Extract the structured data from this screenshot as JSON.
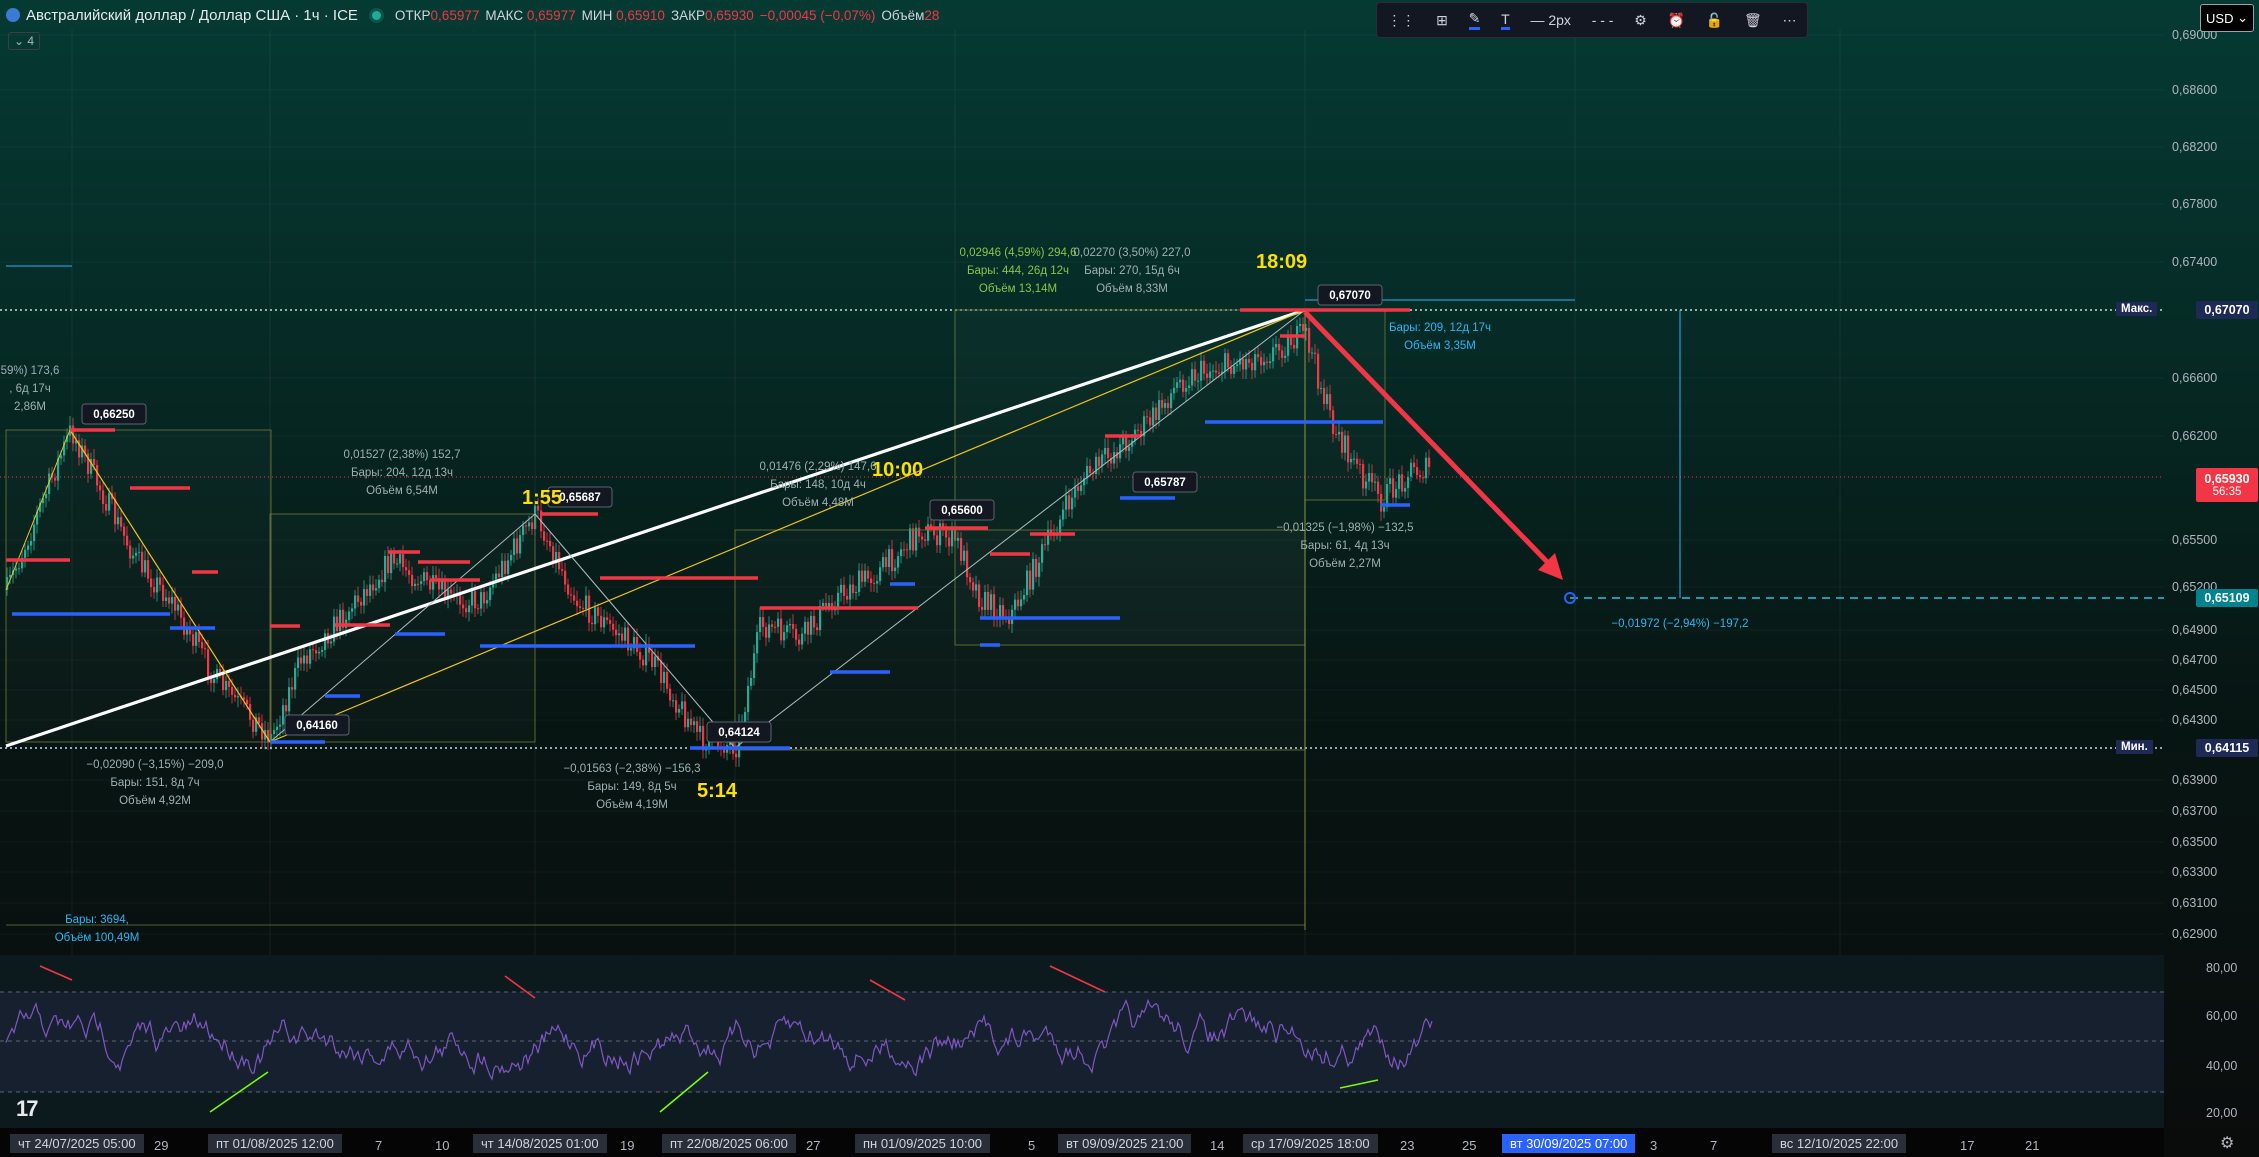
{
  "header": {
    "title": "Австралийский доллар / Доллар США · 1ч · ICE",
    "open_label": "ОТКР",
    "open_value": "0,65977",
    "high_label": "МАКС",
    "high_value": "0,65977",
    "low_label": "МИН",
    "low_value": "0,65910",
    "close_label": "ЗАКР",
    "close_value": "0,65930",
    "change_value": "−0,00045 (−0,07%)",
    "volume_label": "Объём",
    "volume_value": "28",
    "collapse_label": "⌄ 4"
  },
  "toolbar": {
    "width_label": "2px"
  },
  "currency": "USD",
  "price_axis": {
    "ticks": [
      "0,69000",
      "0,68600",
      "0,68200",
      "0,67800",
      "0,67400",
      "0,66600",
      "0,66200",
      "0,65500",
      "0,65200",
      "0,64900",
      "0,64700",
      "0,64500",
      "0,64300",
      "0,63900",
      "0,63700",
      "0,63500",
      "0,63300",
      "0,63100",
      "0,62900"
    ],
    "high_tag": "Макс.",
    "high_value": "0,67070",
    "low_tag": "Мин.",
    "low_value": "0,64115",
    "current_price": "0,65930",
    "countdown": "56:35",
    "target_price": "0,65109"
  },
  "rsi_axis": {
    "ticks": [
      "80,00",
      "60,00",
      "40,00",
      "20,00"
    ]
  },
  "time_axis": {
    "labels": [
      "чт 24/07/2025   05:00",
      "29",
      "пт 01/08/2025   12:00",
      "7",
      "10",
      "чт 14/08/2025   01:00",
      "19",
      "пт 22/08/2025   06:00",
      "27",
      "пн 01/09/2025   10:00",
      "5",
      "вт 09/09/2025   21:00",
      "14",
      "ср 17/09/2025   18:00",
      "23",
      "25",
      "вт 30/09/2025   07:00",
      "3",
      "7",
      "вс 12/10/2025   22:00",
      "17",
      "21"
    ]
  },
  "annotations": {
    "price_labels": [
      "0,66250",
      "0,64160",
      "0,65687",
      "0,64124",
      "0,65600",
      "0,65787",
      "0,67070"
    ],
    "time_marks": [
      "1:55",
      "10:00",
      "18:09",
      "5:14"
    ],
    "left_partial": [
      "59%) 173,6",
      ", 6д 17ч",
      "2,86M"
    ],
    "m1": [
      "0,01527 (2,38%) 152,7",
      "Бары: 204, 12д 13ч",
      "Объём 6,54M"
    ],
    "m2": [
      "−0,02090 (−3,15%) −209,0",
      "Бары: 151, 8д 7ч",
      "Объём 4,92M"
    ],
    "m3": [
      "−0,01563 (−2,38%) −156,3",
      "Бары: 149, 8д 5ч",
      "Объём 4,19M"
    ],
    "m4": [
      "0,01476 (2,29%) 147,6",
      "Бары: 148, 10д 4ч",
      "Объём 4,48M"
    ],
    "m5": [
      "0,02946 (4,59%) 294,6",
      "Бары: 444, 26д 12ч",
      "Объём 13,14M"
    ],
    "m6": [
      "0,02270 (3,50%) 227,0",
      "Бары: 270, 15д 6ч",
      "Объём 8,33M"
    ],
    "m7": [
      "Бары: 209, 12д 17ч",
      "Объём 3,35M"
    ],
    "m8": [
      "−0,01325 (−1,98%) −132,5",
      "Бары: 61, 4д 13ч",
      "Объём 2,27M"
    ],
    "m9": [
      "Бары: 3694,",
      "Объём 100,49M"
    ],
    "projection": "−0,01972 (−2,94%) −197,2"
  },
  "colors": {
    "up": "#22ab94",
    "down": "#f23645",
    "rsi": "#7e57c2",
    "accent": "#2962ff"
  }
}
